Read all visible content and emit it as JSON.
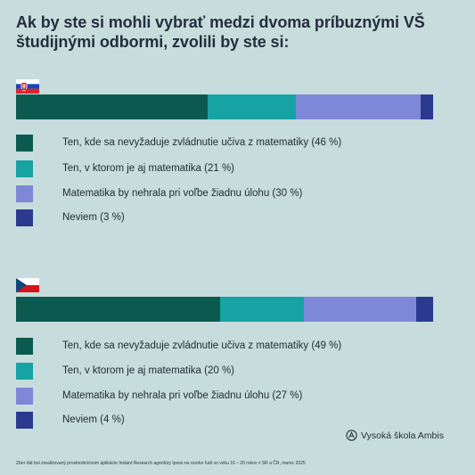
{
  "title": "Ak by ste si mohli vybrať medzi dvoma príbuznými VŠ študijnými odbormi, zvolili by ste si:",
  "colors": [
    "#0b5a4f",
    "#17a3a3",
    "#7d88d9",
    "#2b3a8f"
  ],
  "chart_data": [
    {
      "type": "bar",
      "orientation": "horizontal-stacked",
      "country": "Slovakia",
      "legend_placement": "below",
      "series": [
        {
          "name": "Ten, kde sa nevyžaduje zvládnutie učiva z matematiky (46 %)",
          "value": 46
        },
        {
          "name": "Ten, v ktorom je aj matematika (21 %)",
          "value": 21
        },
        {
          "name": "Matematika by nehrala pri voľbe žiadnu úlohu (30 %)",
          "value": 30
        },
        {
          "name": "Neviem (3 %)",
          "value": 3
        }
      ]
    },
    {
      "type": "bar",
      "orientation": "horizontal-stacked",
      "country": "Czech Republic",
      "legend_placement": "below",
      "series": [
        {
          "name": "Ten, kde sa nevyžaduje zvládnutie učiva z matematiky (49 %)",
          "value": 49
        },
        {
          "name": "Ten, v ktorom je aj matematika (20 %)",
          "value": 20
        },
        {
          "name": "Matematika by nehrala pri voľbe žiadnu úlohu (27 %)",
          "value": 27
        },
        {
          "name": "Neviem (4 %)",
          "value": 4
        }
      ]
    }
  ],
  "logo_text": "Vysoká škola Ambis",
  "footnote": "Zber dát bol zrealizovaný prostredníctvom aplikácie Instant Research agentúry Ipsos na vzorke ľudí vo veku 16 – 26 rokov v SR a ČR, marec 2025"
}
